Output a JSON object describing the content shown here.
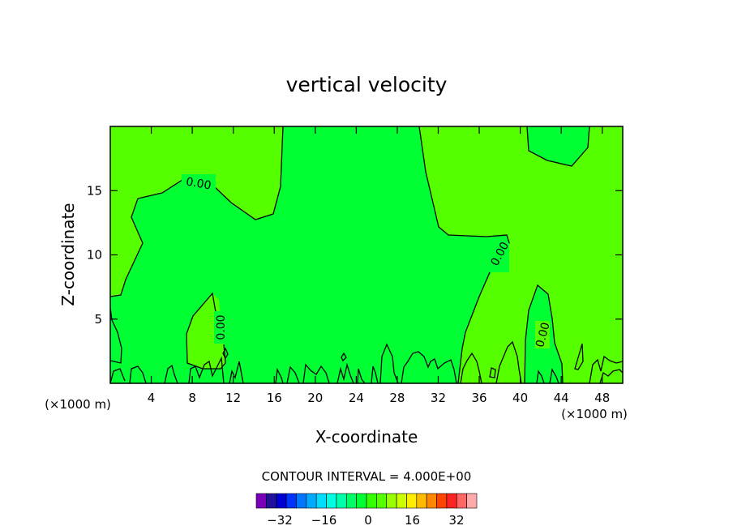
{
  "chart_data": {
    "type": "contour",
    "title": "vertical velocity",
    "xlabel": "X-coordinate",
    "ylabel": "Z-coordinate",
    "x_unit": "(×1000 m)",
    "y_unit": "(×1000 m)",
    "xlim": [
      0,
      50
    ],
    "ylim": [
      0,
      20
    ],
    "x_ticks": [
      4,
      8,
      12,
      16,
      20,
      24,
      28,
      32,
      36,
      40,
      44,
      48
    ],
    "y_ticks": [
      5,
      10,
      15
    ],
    "contour_interval_label": "CONTOUR INTERVAL = 4.000E+00",
    "contour_labels": [
      "0.00",
      "0.00",
      "0.00",
      "0.00",
      "0.00"
    ],
    "colors": {
      "positive_region": "#55ff00",
      "near_zero_region": "#00ff33"
    },
    "colorbar": {
      "tick_labels": [
        "−32",
        "−16",
        "0",
        "16",
        "32"
      ],
      "colors": [
        "#7a00b8",
        "#22119b",
        "#0000d4",
        "#0033ff",
        "#0077ff",
        "#00aaff",
        "#00ddff",
        "#00ffe0",
        "#00ffaa",
        "#00ff66",
        "#00ff33",
        "#33ff00",
        "#55ff00",
        "#99ff00",
        "#ccff00",
        "#ffee00",
        "#ffbb00",
        "#ff8800",
        "#ff4400",
        "#ff2222",
        "#ff6666",
        "#ffaaaa"
      ]
    }
  }
}
